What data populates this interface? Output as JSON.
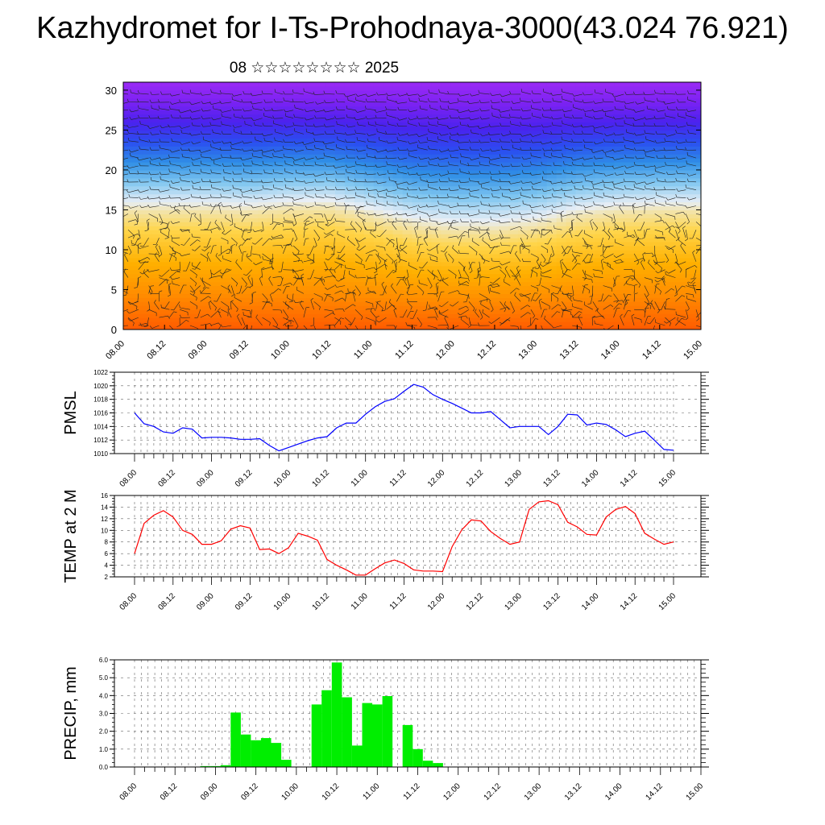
{
  "title": "Kazhydromet for I-Ts-Prohodnaya-3000(43.024 76.921)",
  "subtitle": "08 ☆☆☆☆☆☆☆☆ 2025",
  "colors": {
    "pmsl_line": "#0000ff",
    "temp_line": "#ff0000",
    "precip_bar": "#00ee00"
  },
  "time_ticks": [
    "08.00",
    "08.12",
    "09.00",
    "09.12",
    "10.00",
    "10.12",
    "11.00",
    "11.12",
    "12.00",
    "12.12",
    "13.00",
    "13.12",
    "14.00",
    "14.12",
    "15.00"
  ],
  "chart_data": [
    {
      "type": "heatmap",
      "name": "vertical-section",
      "title": "",
      "ylim": [
        0,
        31
      ],
      "yticks": [
        "0",
        "5",
        "10",
        "15",
        "20",
        "25",
        "30"
      ],
      "x_ticks": [
        "08.00",
        "08.12",
        "09.00",
        "09.12",
        "10.00",
        "10.12",
        "11.00",
        "11.12",
        "12.00",
        "12.12",
        "13.00",
        "13.12",
        "14.00",
        "14.12",
        "15.00"
      ],
      "freezing_level_profile": [
        15,
        15,
        15,
        14.8,
        15.2,
        15.3,
        14.2,
        13.0,
        12.5,
        12.5,
        13.0,
        14.2,
        14.8,
        15,
        15
      ],
      "color_scale": [
        "#ff5a00",
        "#ff8a00",
        "#ffb000",
        "#ffd54a",
        "#e8eef5",
        "#7fc6f0",
        "#2f8ee6",
        "#2a4ff0",
        "#4a22ee",
        "#7a22f2",
        "#9a2af5"
      ],
      "annotations": "wind barbs"
    },
    {
      "type": "line",
      "name": "pmsl",
      "ylabel": "PMSL",
      "ylim": [
        1010,
        1022
      ],
      "yticks": [
        "1010",
        "1012",
        "1014",
        "1016",
        "1018",
        "1020",
        "1022"
      ],
      "x_ticks": [
        "08.00",
        "08.12",
        "09.00",
        "09.12",
        "10.00",
        "10.12",
        "11.00",
        "11.12",
        "12.00",
        "12.12",
        "13.00",
        "13.12",
        "14.00",
        "14.12",
        "15.00"
      ],
      "grid": true,
      "series": [
        {
          "values": [
            1016.0,
            1014.4,
            1014.0,
            1013.2,
            1013.0,
            1013.8,
            1013.6,
            1012.3,
            1012.4,
            1012.4,
            1012.3,
            1012.1,
            1012.1,
            1012.2,
            1011.2,
            1010.4,
            1010.9,
            1011.4,
            1011.9,
            1012.3,
            1012.5,
            1013.8,
            1014.5,
            1014.5,
            1015.8,
            1016.9,
            1017.7,
            1018.1,
            1019.2,
            1020.2,
            1019.8,
            1018.7,
            1018.0,
            1017.4,
            1016.7,
            1016.0,
            1016.0,
            1016.2,
            1015.0,
            1013.8,
            1014.0,
            1014.0,
            1014.0,
            1012.8,
            1014.0,
            1015.8,
            1015.7,
            1014.2,
            1014.5,
            1014.3,
            1013.5,
            1012.5,
            1013.0,
            1013.3,
            1012.0,
            1010.6,
            1010.5
          ]
        }
      ]
    },
    {
      "type": "line",
      "name": "temp-2m",
      "ylabel": "TEMP at 2 M",
      "ylim": [
        2,
        16
      ],
      "yticks": [
        "2",
        "4",
        "6",
        "8",
        "10",
        "12",
        "14",
        "16"
      ],
      "x_ticks": [
        "08.00",
        "08.12",
        "09.00",
        "09.12",
        "10.00",
        "10.12",
        "11.00",
        "11.12",
        "12.00",
        "12.12",
        "13.00",
        "13.12",
        "14.00",
        "14.12",
        "15.00"
      ],
      "grid": true,
      "series": [
        {
          "values": [
            6.0,
            11.2,
            12.6,
            13.4,
            12.3,
            10.0,
            9.3,
            7.6,
            7.6,
            8.2,
            10.2,
            10.8,
            10.4,
            6.7,
            6.8,
            6.0,
            7.0,
            9.5,
            9.0,
            8.3,
            5.0,
            4.0,
            3.2,
            2.3,
            2.3,
            3.4,
            4.4,
            4.9,
            4.3,
            3.2,
            3.0,
            3.0,
            2.9,
            7.2,
            10.1,
            11.8,
            11.6,
            9.8,
            8.6,
            7.6,
            8.0,
            13.6,
            14.9,
            15.1,
            14.4,
            11.4,
            10.6,
            9.3,
            9.2,
            12.3,
            13.6,
            14.1,
            12.9,
            9.5,
            8.5,
            7.6,
            8.0
          ]
        }
      ]
    },
    {
      "type": "bar",
      "name": "precip",
      "ylabel": "PRECIP, mm",
      "ylim": [
        0,
        6
      ],
      "yticks": [
        "0.0",
        "1.0",
        "2.0",
        "3.0",
        "4.0",
        "5.0",
        "6.0"
      ],
      "x_ticks": [
        "08.00",
        "08.12",
        "09.00",
        "09.12",
        "10.00",
        "10.12",
        "11.00",
        "11.12",
        "12.00",
        "12.12",
        "13.00",
        "13.12",
        "14.00",
        "14.12",
        "15.00"
      ],
      "grid": true,
      "values": [
        0.02,
        0.02,
        0,
        0,
        0,
        0,
        0,
        0.05,
        0.05,
        0.1,
        3.05,
        1.82,
        1.5,
        1.62,
        1.35,
        0.4,
        0,
        0,
        3.5,
        4.3,
        5.85,
        3.9,
        1.2,
        3.58,
        3.5,
        3.97,
        0,
        2.35,
        1.0,
        0.35,
        0.22,
        0,
        0,
        0,
        0,
        0,
        0,
        0,
        0,
        0,
        0,
        0,
        0,
        0,
        0,
        0,
        0,
        0,
        0,
        0,
        0,
        0,
        0,
        0,
        0,
        0,
        0
      ]
    }
  ]
}
